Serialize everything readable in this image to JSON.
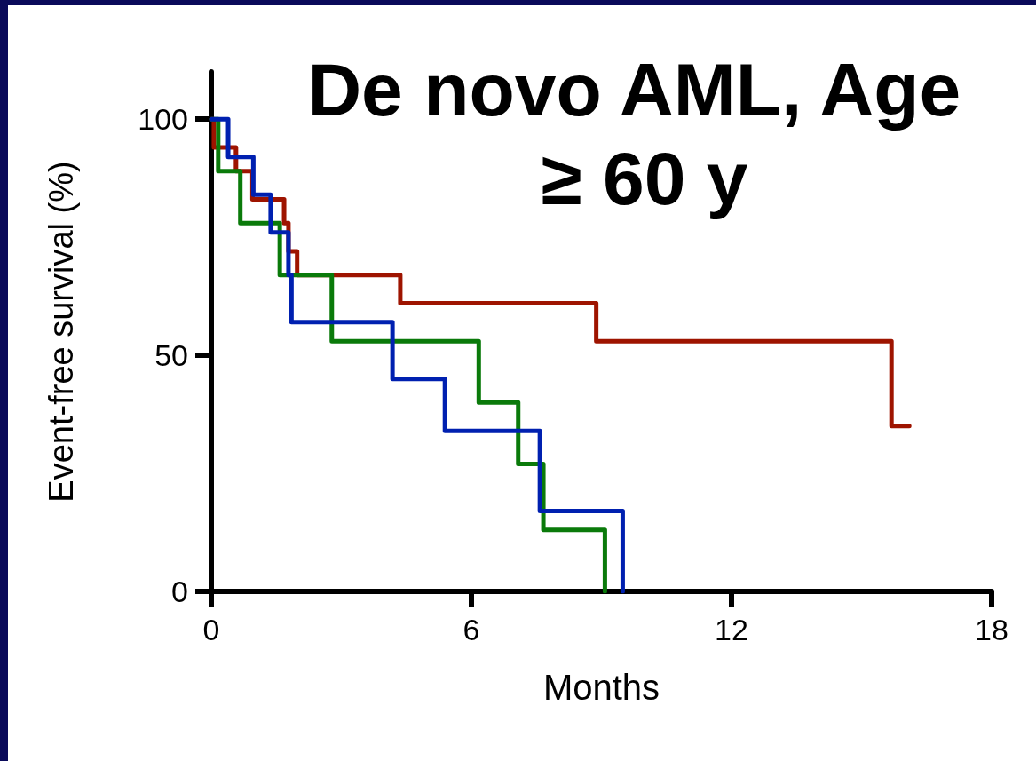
{
  "chart_data": {
    "type": "step",
    "title": "De novo AML, Age ≥ 60 y",
    "xlabel": "Months",
    "ylabel": "Event-free survival (%)",
    "xlim": [
      0,
      18
    ],
    "xticks": [
      0,
      6,
      12,
      18
    ],
    "ylim": [
      0,
      110
    ],
    "yticks": [
      0,
      50,
      100
    ],
    "grid": false,
    "marker": "none",
    "line_style": "solid",
    "series": [
      {
        "color": "#9e1400",
        "x": [
          0,
          0.06,
          0.57,
          0.95,
          1.68,
          1.78,
          1.98,
          4.36,
          8.88,
          15.69,
          16.1
        ],
        "values": [
          100,
          94,
          89,
          83,
          78,
          72,
          67,
          61,
          53,
          35,
          35
        ]
      },
      {
        "color": "#0a7a0a",
        "x": [
          0,
          0.16,
          0.67,
          1.58,
          2.78,
          6.17,
          7.08,
          7.66,
          9.08
        ],
        "values": [
          100,
          89,
          78,
          67,
          53,
          40,
          27,
          13,
          0
        ]
      },
      {
        "color": "#0020b0",
        "x": [
          0,
          0.39,
          0.97,
          1.37,
          1.78,
          1.85,
          4.18,
          5.39,
          7.58,
          9.49
        ],
        "values": [
          100,
          92,
          84,
          76,
          67,
          57,
          45,
          34,
          17,
          0
        ]
      }
    ]
  }
}
